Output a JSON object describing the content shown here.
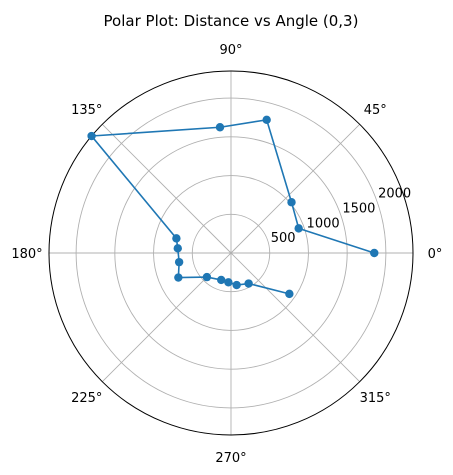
{
  "chart_data": {
    "type": "line",
    "subtype": "polar",
    "title": "Polar Plot: Distance vs Angle (0,3)",
    "rmax": 2350,
    "radial_ticks": [
      500,
      1000,
      1500,
      2000
    ],
    "radial_tick_labels": [
      "500",
      "1000",
      "1500",
      "2000"
    ],
    "angle_ticks": [
      0,
      45,
      90,
      135,
      180,
      225,
      270,
      315
    ],
    "angle_tick_labels": [
      "0°",
      "45°",
      "90°",
      "135°",
      "180°",
      "225°",
      "270°",
      "315°"
    ],
    "grid": true,
    "series": [
      {
        "marker": "circle",
        "color": "#1f77b4",
        "theta_deg": [
          0,
          20,
          40,
          75,
          95,
          140,
          165,
          175,
          190,
          205,
          225,
          250,
          265,
          280,
          300,
          325
        ],
        "r": [
          1850,
          930,
          1020,
          1780,
          1630,
          2350,
          730,
          690,
          680,
          750,
          440,
          370,
          380,
          420,
          455,
          920
        ]
      }
    ]
  }
}
